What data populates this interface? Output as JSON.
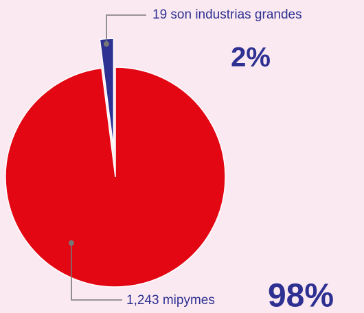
{
  "chart_data": {
    "type": "pie",
    "categories": [
      "19 son industrias grandes",
      "1,243 mipymes"
    ],
    "values": [
      2,
      98
    ],
    "value_labels": [
      "2%",
      "98%"
    ],
    "colors": [
      "#2e3192",
      "#e30613"
    ]
  }
}
